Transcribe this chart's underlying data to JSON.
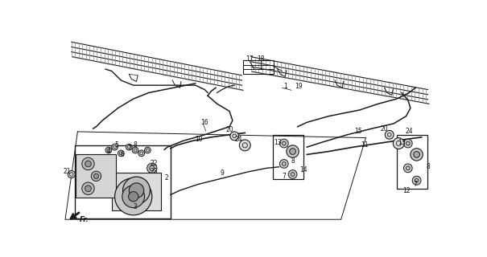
{
  "bg_color": "#ffffff",
  "line_color": "#1a1a1a",
  "gray_color": "#888888",
  "dark_gray": "#555555",
  "figsize": [
    6.05,
    3.2
  ],
  "dpi": 100,
  "blade_fills": "#999999",
  "motor_fill": "#cccccc",
  "motor_dark": "#888888"
}
